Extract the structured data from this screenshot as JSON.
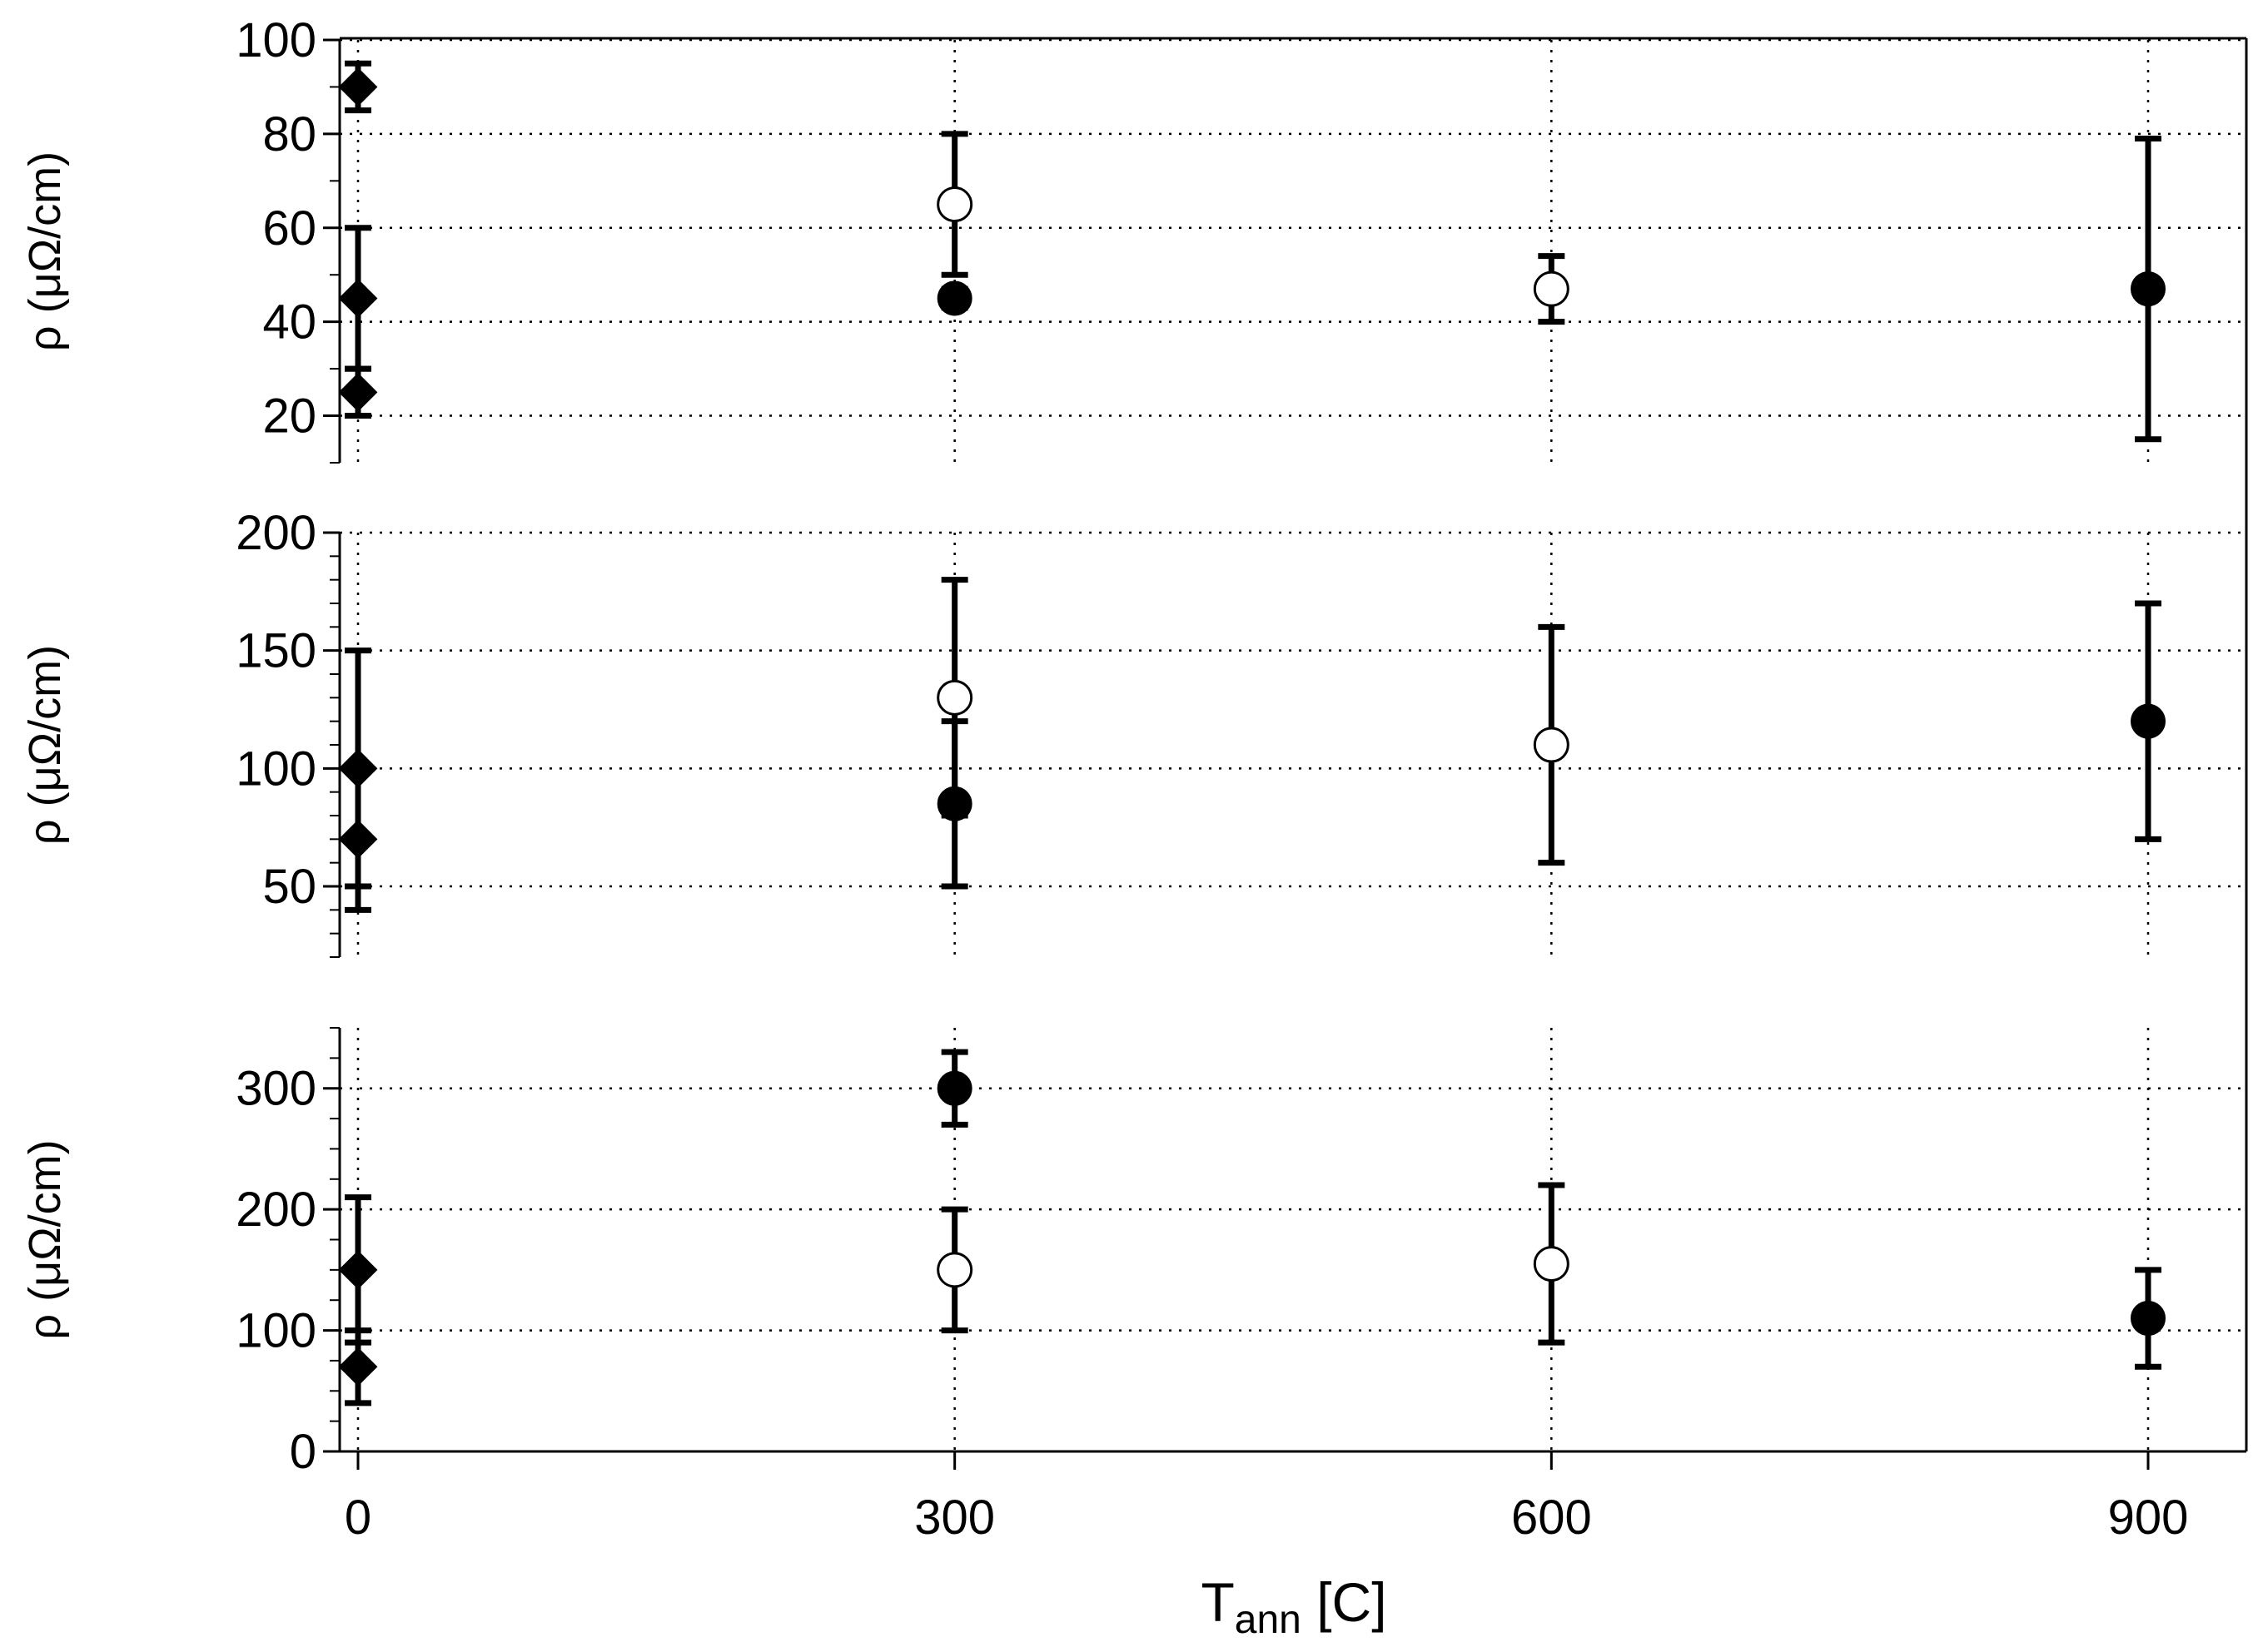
{
  "chart_data": [
    {
      "type": "scatter",
      "panel": "top",
      "ylabel": "ρ (μΩ/cm)",
      "ylim": [
        10,
        100
      ],
      "yticks": [
        20,
        40,
        60,
        80,
        100
      ],
      "xlim": [
        -30,
        950
      ],
      "xticks": [
        0,
        300,
        600,
        900
      ],
      "grid": true,
      "series": [
        {
          "marker": "diamond-filled",
          "points": [
            {
              "x": 0,
              "y": 90,
              "err_low": 85,
              "err_high": 95
            },
            {
              "x": 0,
              "y": 45,
              "err_low": 30,
              "err_high": 60
            },
            {
              "x": 0,
              "y": 25,
              "err_low": 20,
              "err_high": 30
            }
          ]
        },
        {
          "marker": "circle-open",
          "points": [
            {
              "x": 300,
              "y": 65,
              "err_low": 50,
              "err_high": 80
            },
            {
              "x": 600,
              "y": 47,
              "err_low": 40,
              "err_high": 54
            }
          ]
        },
        {
          "marker": "circle-filled",
          "points": [
            {
              "x": 300,
              "y": 45,
              "err_low": 43,
              "err_high": 47
            },
            {
              "x": 900,
              "y": 47,
              "err_low": 15,
              "err_high": 79
            }
          ]
        }
      ]
    },
    {
      "type": "scatter",
      "panel": "middle",
      "ylabel": "ρ (μΩ/cm)",
      "ylim": [
        20,
        200
      ],
      "yticks": [
        50,
        100,
        150,
        200
      ],
      "xlim": [
        -30,
        950
      ],
      "xticks": [
        0,
        300,
        600,
        900
      ],
      "grid": true,
      "series": [
        {
          "marker": "diamond-filled",
          "points": [
            {
              "x": 0,
              "y": 100,
              "err_low": 50,
              "err_high": 150
            },
            {
              "x": 0,
              "y": 70,
              "err_low": 40,
              "err_high": 100
            }
          ]
        },
        {
          "marker": "circle-open",
          "points": [
            {
              "x": 300,
              "y": 130,
              "err_low": 80,
              "err_high": 180
            },
            {
              "x": 600,
              "y": 110,
              "err_low": 60,
              "err_high": 160
            }
          ]
        },
        {
          "marker": "circle-filled",
          "points": [
            {
              "x": 300,
              "y": 85,
              "err_low": 50,
              "err_high": 120
            },
            {
              "x": 900,
              "y": 120,
              "err_low": 70,
              "err_high": 170
            }
          ]
        }
      ]
    },
    {
      "type": "scatter",
      "panel": "bottom",
      "ylabel": "ρ (μΩ/cm)",
      "xlabel": "T",
      "xlabel_sub": "ann",
      "xlabel_suffix": " [C]",
      "ylim": [
        0,
        350
      ],
      "yticks": [
        0,
        100,
        200,
        300
      ],
      "xlim": [
        -30,
        950
      ],
      "xticks": [
        0,
        300,
        600,
        900
      ],
      "grid": true,
      "series": [
        {
          "marker": "diamond-filled",
          "points": [
            {
              "x": 0,
              "y": 150,
              "err_low": 90,
              "err_high": 210
            },
            {
              "x": 0,
              "y": 70,
              "err_low": 40,
              "err_high": 100
            }
          ]
        },
        {
          "marker": "circle-open",
          "points": [
            {
              "x": 300,
              "y": 150,
              "err_low": 100,
              "err_high": 200
            },
            {
              "x": 600,
              "y": 155,
              "err_low": 90,
              "err_high": 220
            }
          ]
        },
        {
          "marker": "circle-filled",
          "points": [
            {
              "x": 300,
              "y": 300,
              "err_low": 270,
              "err_high": 330
            },
            {
              "x": 900,
              "y": 110,
              "err_low": 70,
              "err_high": 150
            }
          ]
        }
      ]
    }
  ]
}
